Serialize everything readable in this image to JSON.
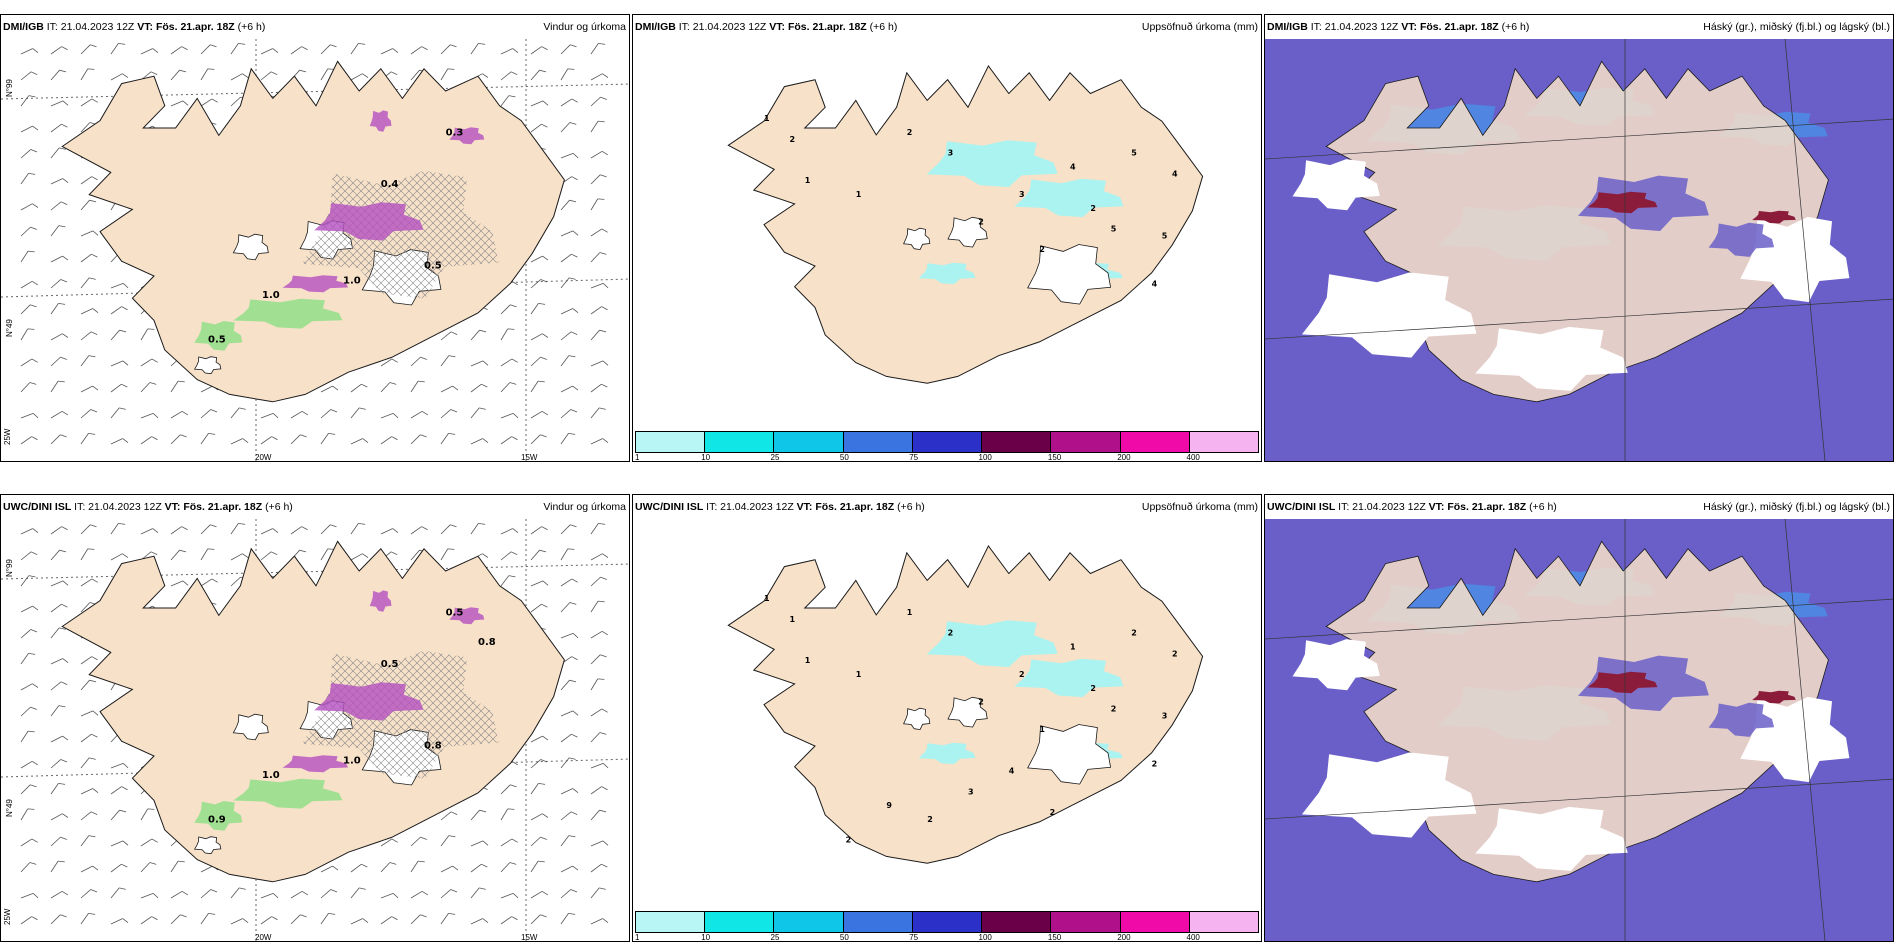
{
  "colors": {
    "land": "#f7e1c9",
    "coast": "#1a1a1a",
    "snow_fill": "#ffffff",
    "precip_light": "#aaf3f0",
    "cloud_high": "#6a5fc8",
    "cloud_mid": "#4a8fe8",
    "cloud_low": "#b6d8f5",
    "cloud_dark": "#8b1c3a",
    "rain_green": "#7ce07c",
    "purple": "#b450c0"
  },
  "rows": [
    {
      "panels": [
        {
          "model": "DMI/IGB",
          "it": "IT: 21.04.2023 12Z",
          "vt_label": "VT:",
          "vt": "Fös. 21.apr. 18Z",
          "lead": "(+6 h)",
          "title": "Vindur og úrkoma",
          "axes": {
            "lat_top": "N°99",
            "lat_mid": "N°49",
            "lat_bottom": "25W",
            "lon_a": "20W",
            "lon_b": "15W"
          },
          "labels": [
            "1.0",
            "1.0",
            "0.5",
            "0.5",
            "0.4",
            "0.3"
          ]
        },
        {
          "model": "DMI/IGB",
          "it": "IT: 21.04.2023 12Z",
          "vt_label": "VT:",
          "vt": "Fös. 21.apr. 18Z",
          "lead": "(+6 h)",
          "title": "Uppsöfnuð úrkoma (mm)",
          "labels": [
            "1",
            "2",
            "1",
            "1",
            "2",
            "3",
            "2",
            "3",
            "2",
            "4",
            "2",
            "5",
            "5",
            "5",
            "4",
            "4"
          ]
        },
        {
          "model": "DMI/IGB",
          "it": "IT: 21.04.2023 12Z",
          "vt_label": "VT:",
          "vt": "Fös. 21.apr. 18Z",
          "lead": "(+6 h)",
          "title": "Háský (gr.), miðský (fj.bl.) og lágský (bl.)"
        }
      ]
    },
    {
      "panels": [
        {
          "model": "UWC/DINI ISL",
          "it": "IT: 21.04.2023 12Z",
          "vt_label": "VT:",
          "vt": "Fös. 21.apr. 18Z",
          "lead": "(+6 h)",
          "title": "Vindur og úrkoma",
          "axes": {
            "lat_top": "N°99",
            "lat_mid": "N°49",
            "lat_bottom": "25W",
            "lon_a": "20W",
            "lon_b": "15W"
          },
          "labels": [
            "1.0",
            "1.0",
            "0.8",
            "0.9",
            "0.5",
            "0.5",
            "0.8"
          ]
        },
        {
          "model": "UWC/DINI ISL",
          "it": "IT: 21.04.2023 12Z",
          "vt_label": "VT:",
          "vt": "Fös. 21.apr. 18Z",
          "lead": "(+6 h)",
          "title": "Uppsöfnuð úrkoma (mm)",
          "labels": [
            "1",
            "1",
            "1",
            "1",
            "1",
            "2",
            "2",
            "2",
            "1",
            "1",
            "2",
            "2",
            "2",
            "3",
            "2",
            "2",
            "4",
            "3",
            "2",
            "9",
            "2",
            "2"
          ]
        },
        {
          "model": "UWC/DINI ISL",
          "it": "IT: 21.04.2023 12Z",
          "vt_label": "VT:",
          "vt": "Fös. 21.apr. 18Z",
          "lead": "(+6 h)",
          "title": "Háský (gr.), miðský (fj.bl.) og lágský (bl.)"
        }
      ]
    }
  ],
  "colorbar": {
    "ticks": [
      "1",
      "10",
      "25",
      "50",
      "75",
      "100",
      "150",
      "200",
      "400"
    ],
    "colors": [
      "#b8f6f6",
      "#10e6e6",
      "#10c6e8",
      "#3a74e0",
      "#2a30c8",
      "#6a0048",
      "#b0108a",
      "#f00aa8",
      "#f5b4f0"
    ]
  }
}
